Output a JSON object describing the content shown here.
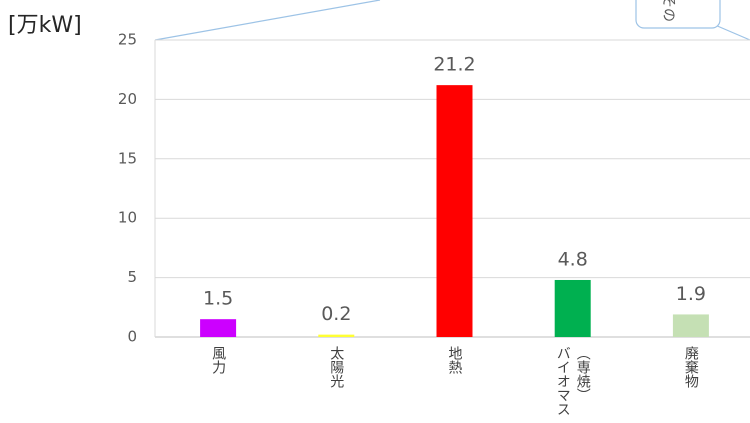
{
  "chart_data": {
    "type": "bar",
    "y_label": "[万kW]",
    "callout": "その",
    "categories": [
      "風力",
      "太陽光",
      "地熱",
      "バイオマス（専焼）",
      "廃棄物"
    ],
    "values": [
      1.5,
      0.2,
      21.2,
      4.8,
      1.9
    ],
    "colors": [
      "#cc00ff",
      "#ffff33",
      "#ff0000",
      "#00b050",
      "#c5e0b4"
    ],
    "ylim": [
      0,
      25
    ],
    "yticks": [
      0,
      5,
      10,
      15,
      20,
      25
    ],
    "grid": true
  }
}
